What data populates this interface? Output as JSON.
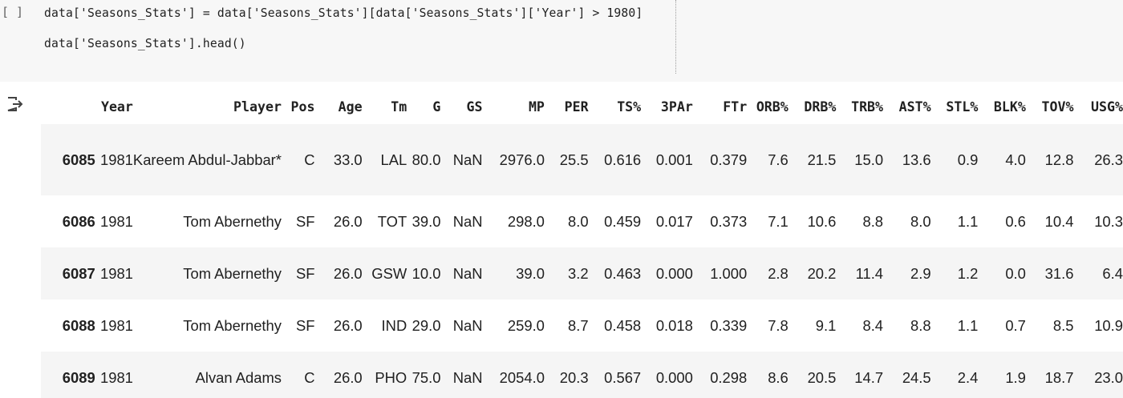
{
  "cell": {
    "run_label": "[ ]",
    "code_lines": [
      "data['Seasons_Stats'] = data['Seasons_Stats'][data['Seasons_Stats']['Year'] > 1980]",
      "data['Seasons_Stats'].head()"
    ]
  },
  "output": {
    "icon": "output-redirect-icon",
    "columns": [
      "Year",
      "Player",
      "Pos",
      "Age",
      "Tm",
      "G",
      "GS",
      "MP",
      "PER",
      "TS%",
      "3PAr",
      "FTr",
      "ORB%",
      "DRB%",
      "TRB%",
      "AST%",
      "STL%",
      "BLK%",
      "TOV%",
      "USG%"
    ],
    "rows": [
      {
        "index": "6085",
        "cells": [
          "1981",
          "Kareem Abdul-Jabbar*",
          "C",
          "33.0",
          "LAL",
          "80.0",
          "NaN",
          "2976.0",
          "25.5",
          "0.616",
          "0.001",
          "0.379",
          "7.6",
          "21.5",
          "15.0",
          "13.6",
          "0.9",
          "4.0",
          "12.8",
          "26.3"
        ]
      },
      {
        "index": "6086",
        "cells": [
          "1981",
          "Tom Abernethy",
          "SF",
          "26.0",
          "TOT",
          "39.0",
          "NaN",
          "298.0",
          "8.0",
          "0.459",
          "0.017",
          "0.373",
          "7.1",
          "10.6",
          "8.8",
          "8.0",
          "1.1",
          "0.6",
          "10.4",
          "10.3"
        ]
      },
      {
        "index": "6087",
        "cells": [
          "1981",
          "Tom Abernethy",
          "SF",
          "26.0",
          "GSW",
          "10.0",
          "NaN",
          "39.0",
          "3.2",
          "0.463",
          "0.000",
          "1.000",
          "2.8",
          "20.2",
          "11.4",
          "2.9",
          "1.2",
          "0.0",
          "31.6",
          "6.4"
        ]
      },
      {
        "index": "6088",
        "cells": [
          "1981",
          "Tom Abernethy",
          "SF",
          "26.0",
          "IND",
          "29.0",
          "NaN",
          "259.0",
          "8.7",
          "0.458",
          "0.018",
          "0.339",
          "7.8",
          "9.1",
          "8.4",
          "8.8",
          "1.1",
          "0.7",
          "8.5",
          "10.9"
        ]
      },
      {
        "index": "6089",
        "cells": [
          "1981",
          "Alvan Adams",
          "C",
          "26.0",
          "PHO",
          "75.0",
          "NaN",
          "2054.0",
          "20.3",
          "0.567",
          "0.000",
          "0.298",
          "8.6",
          "20.5",
          "14.7",
          "24.5",
          "2.4",
          "1.9",
          "18.7",
          "23.0"
        ]
      }
    ]
  }
}
